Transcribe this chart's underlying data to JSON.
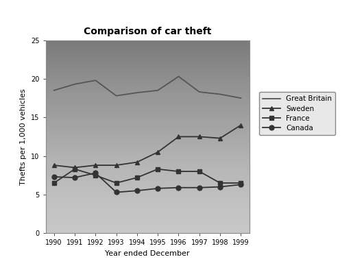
{
  "title": "Comparison of car theft",
  "xlabel": "Year ended December",
  "ylabel": "Thefts per 1,000 vehicles",
  "years": [
    1990,
    1991,
    1992,
    1993,
    1994,
    1995,
    1996,
    1997,
    1998,
    1999
  ],
  "series": {
    "Great Britain": {
      "values": [
        18.5,
        19.3,
        19.8,
        17.8,
        18.2,
        18.5,
        20.3,
        18.3,
        18.0,
        17.5
      ],
      "color": "#555555",
      "marker": null,
      "linestyle": "-"
    },
    "Sweden": {
      "values": [
        8.8,
        8.5,
        8.8,
        8.8,
        9.2,
        10.5,
        12.5,
        12.5,
        12.3,
        14.0
      ],
      "color": "#333333",
      "marker": "^",
      "linestyle": "-"
    },
    "France": {
      "values": [
        6.5,
        8.3,
        7.5,
        6.5,
        7.2,
        8.3,
        8.0,
        8.0,
        6.5,
        6.5
      ],
      "color": "#333333",
      "marker": "s",
      "linestyle": "-"
    },
    "Canada": {
      "values": [
        7.3,
        7.2,
        7.8,
        5.3,
        5.5,
        5.8,
        5.9,
        5.9,
        6.0,
        6.3
      ],
      "color": "#333333",
      "marker": "o",
      "linestyle": "-"
    }
  },
  "ylim": [
    0,
    25
  ],
  "yticks": [
    0,
    5,
    10,
    15,
    20,
    25
  ],
  "bg_color_top": "#b0b0b0",
  "bg_color_bottom": "#d8d8d8",
  "fig_color": "#ffffff"
}
